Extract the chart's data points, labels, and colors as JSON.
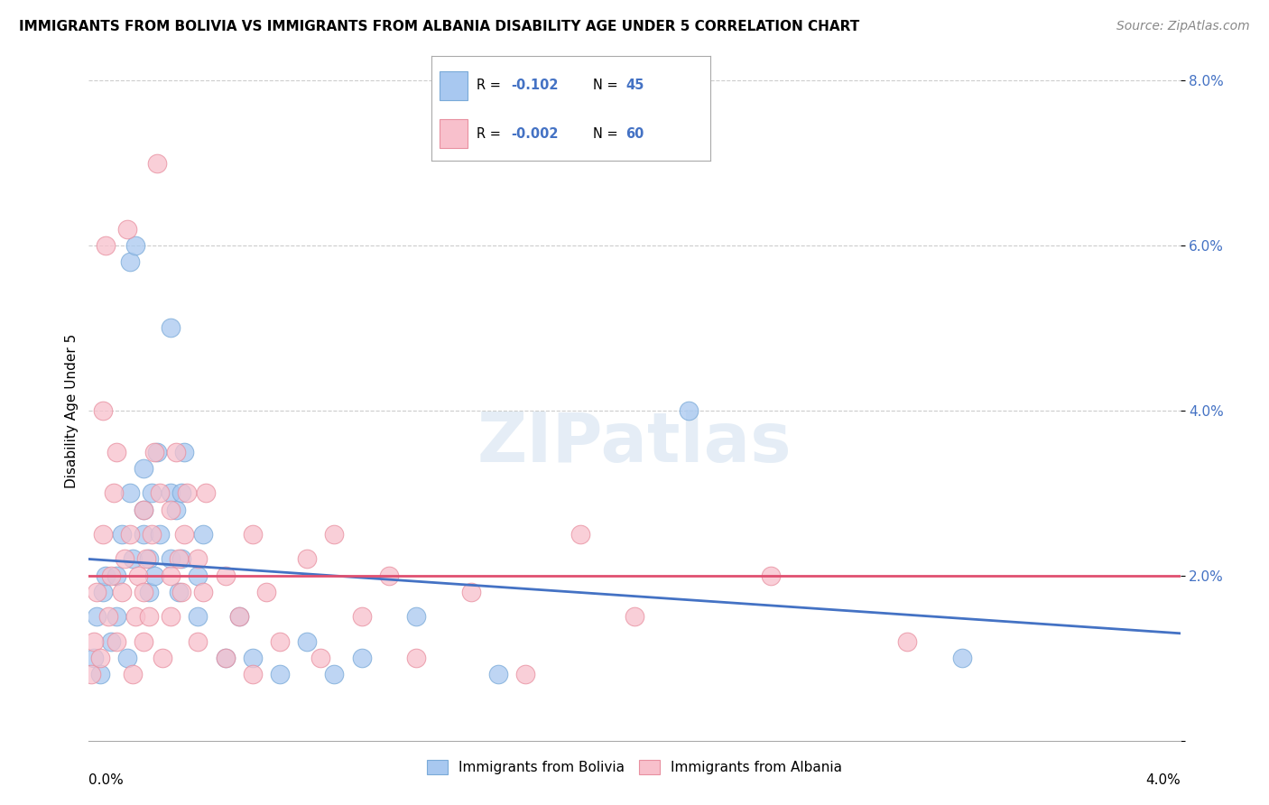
{
  "title": "IMMIGRANTS FROM BOLIVIA VS IMMIGRANTS FROM ALBANIA DISABILITY AGE UNDER 5 CORRELATION CHART",
  "source": "Source: ZipAtlas.com",
  "ylabel": "Disability Age Under 5",
  "ylim": [
    0.0,
    0.08
  ],
  "xlim": [
    0.0,
    0.04
  ],
  "ytick_positions": [
    0.0,
    0.02,
    0.04,
    0.06,
    0.08
  ],
  "ytick_labels": [
    "",
    "2.0%",
    "4.0%",
    "6.0%",
    "8.0%"
  ],
  "series": [
    {
      "name": "Immigrants from Bolivia",
      "color": "#A8C8F0",
      "edge_color": "#7AAAD8",
      "R": -0.102,
      "N": 45,
      "line_color": "#4472C4",
      "line_start_y": 0.022,
      "line_end_y": 0.013,
      "points": [
        [
          0.0002,
          0.01
        ],
        [
          0.0003,
          0.015
        ],
        [
          0.0004,
          0.008
        ],
        [
          0.0005,
          0.018
        ],
        [
          0.0006,
          0.02
        ],
        [
          0.0008,
          0.012
        ],
        [
          0.001,
          0.015
        ],
        [
          0.001,
          0.02
        ],
        [
          0.0012,
          0.025
        ],
        [
          0.0014,
          0.01
        ],
        [
          0.0015,
          0.03
        ],
        [
          0.0015,
          0.058
        ],
        [
          0.0016,
          0.022
        ],
        [
          0.0017,
          0.06
        ],
        [
          0.002,
          0.033
        ],
        [
          0.002,
          0.025
        ],
        [
          0.002,
          0.028
        ],
        [
          0.0022,
          0.018
        ],
        [
          0.0022,
          0.022
        ],
        [
          0.0023,
          0.03
        ],
        [
          0.0024,
          0.02
        ],
        [
          0.0025,
          0.035
        ],
        [
          0.0026,
          0.025
        ],
        [
          0.003,
          0.03
        ],
        [
          0.003,
          0.022
        ],
        [
          0.003,
          0.05
        ],
        [
          0.0032,
          0.028
        ],
        [
          0.0033,
          0.018
        ],
        [
          0.0034,
          0.022
        ],
        [
          0.0034,
          0.03
        ],
        [
          0.0035,
          0.035
        ],
        [
          0.004,
          0.02
        ],
        [
          0.004,
          0.015
        ],
        [
          0.0042,
          0.025
        ],
        [
          0.005,
          0.01
        ],
        [
          0.0055,
          0.015
        ],
        [
          0.006,
          0.01
        ],
        [
          0.007,
          0.008
        ],
        [
          0.008,
          0.012
        ],
        [
          0.009,
          0.008
        ],
        [
          0.01,
          0.01
        ],
        [
          0.012,
          0.015
        ],
        [
          0.015,
          0.008
        ],
        [
          0.022,
          0.04
        ],
        [
          0.032,
          0.01
        ]
      ]
    },
    {
      "name": "Immigrants from Albania",
      "color": "#F8C0CC",
      "edge_color": "#E890A0",
      "R": -0.002,
      "N": 60,
      "line_color": "#E05070",
      "line_start_y": 0.02,
      "line_end_y": 0.02,
      "points": [
        [
          0.0001,
          0.008
        ],
        [
          0.0002,
          0.012
        ],
        [
          0.0003,
          0.018
        ],
        [
          0.0004,
          0.01
        ],
        [
          0.0005,
          0.025
        ],
        [
          0.0005,
          0.04
        ],
        [
          0.0006,
          0.06
        ],
        [
          0.0007,
          0.015
        ],
        [
          0.0008,
          0.02
        ],
        [
          0.0009,
          0.03
        ],
        [
          0.001,
          0.012
        ],
        [
          0.001,
          0.035
        ],
        [
          0.0012,
          0.018
        ],
        [
          0.0013,
          0.022
        ],
        [
          0.0014,
          0.062
        ],
        [
          0.0015,
          0.025
        ],
        [
          0.0016,
          0.008
        ],
        [
          0.0017,
          0.015
        ],
        [
          0.0018,
          0.02
        ],
        [
          0.002,
          0.012
        ],
        [
          0.002,
          0.018
        ],
        [
          0.002,
          0.028
        ],
        [
          0.0021,
          0.022
        ],
        [
          0.0022,
          0.015
        ],
        [
          0.0023,
          0.025
        ],
        [
          0.0024,
          0.035
        ],
        [
          0.0025,
          0.07
        ],
        [
          0.0026,
          0.03
        ],
        [
          0.0027,
          0.01
        ],
        [
          0.003,
          0.02
        ],
        [
          0.003,
          0.028
        ],
        [
          0.003,
          0.015
        ],
        [
          0.0032,
          0.035
        ],
        [
          0.0033,
          0.022
        ],
        [
          0.0034,
          0.018
        ],
        [
          0.0035,
          0.025
        ],
        [
          0.0036,
          0.03
        ],
        [
          0.004,
          0.012
        ],
        [
          0.004,
          0.022
        ],
        [
          0.0042,
          0.018
        ],
        [
          0.0043,
          0.03
        ],
        [
          0.005,
          0.01
        ],
        [
          0.005,
          0.02
        ],
        [
          0.0055,
          0.015
        ],
        [
          0.006,
          0.008
        ],
        [
          0.006,
          0.025
        ],
        [
          0.0065,
          0.018
        ],
        [
          0.007,
          0.012
        ],
        [
          0.008,
          0.022
        ],
        [
          0.0085,
          0.01
        ],
        [
          0.009,
          0.025
        ],
        [
          0.01,
          0.015
        ],
        [
          0.011,
          0.02
        ],
        [
          0.012,
          0.01
        ],
        [
          0.014,
          0.018
        ],
        [
          0.016,
          0.008
        ],
        [
          0.018,
          0.025
        ],
        [
          0.02,
          0.015
        ],
        [
          0.025,
          0.02
        ],
        [
          0.03,
          0.012
        ]
      ]
    }
  ],
  "watermark_text": "ZIPatlas",
  "watermark_fontsize": 55,
  "background_color": "#FFFFFF",
  "grid_color": "#CCCCCC",
  "grid_style": "--",
  "title_fontsize": 11,
  "source_fontsize": 10,
  "ylabel_fontsize": 11,
  "ytick_fontsize": 11,
  "legend_fontsize": 11
}
